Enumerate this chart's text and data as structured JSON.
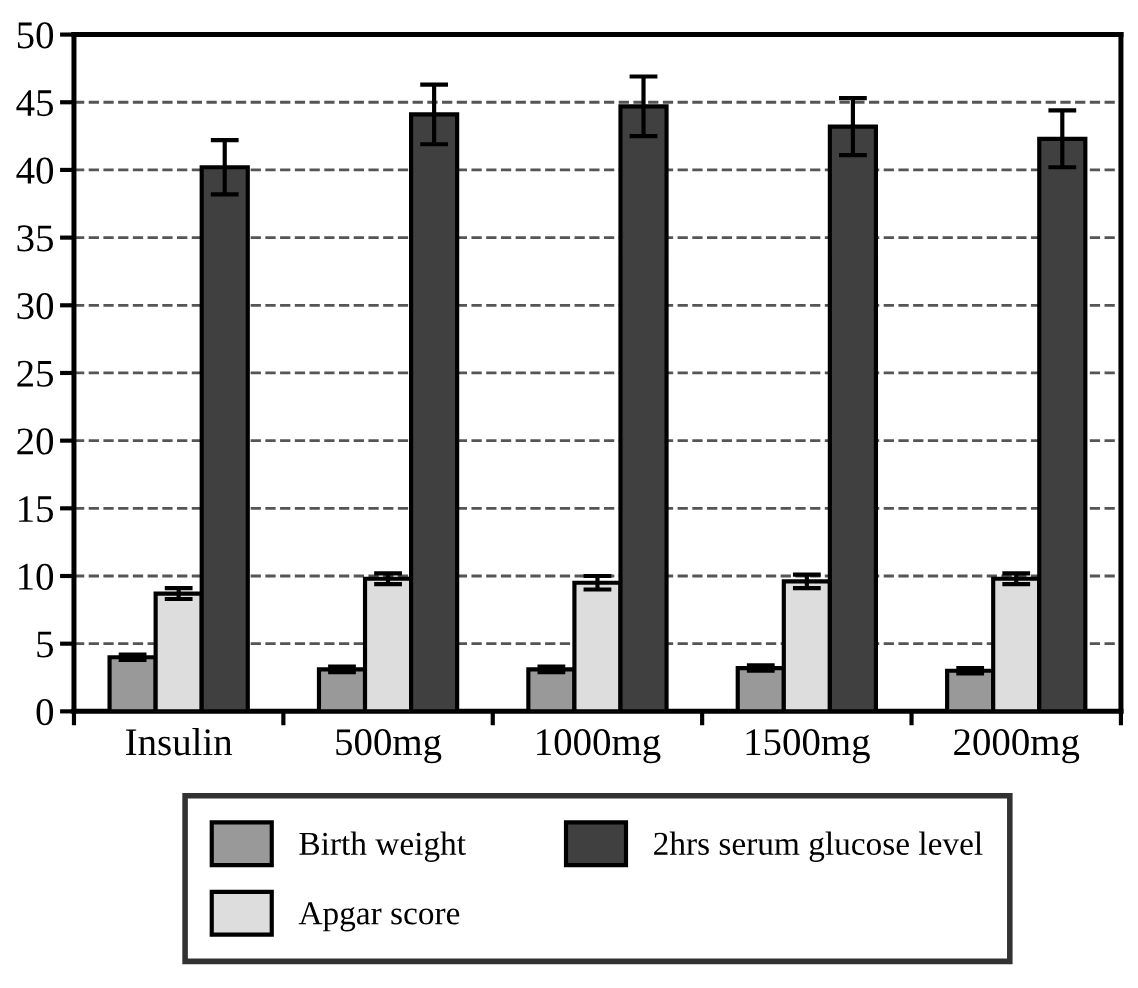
{
  "chart_data": {
    "type": "bar",
    "categories": [
      "Insulin",
      "500mg",
      "1000mg",
      "1500mg",
      "2000mg"
    ],
    "series": [
      {
        "name": "Birth weight",
        "color": "#999999",
        "values": [
          4.0,
          3.1,
          3.1,
          3.2,
          3.0
        ],
        "errors": [
          0.2,
          0.2,
          0.2,
          0.2,
          0.2
        ]
      },
      {
        "name": "Apgar score",
        "color": "#dddddd",
        "values": [
          8.7,
          9.8,
          9.5,
          9.6,
          9.8
        ],
        "errors": [
          0.4,
          0.4,
          0.5,
          0.5,
          0.4
        ]
      },
      {
        "name": "2hrs serum glucose level",
        "color": "#404040",
        "values": [
          40.2,
          44.1,
          44.7,
          43.2,
          42.3
        ],
        "errors": [
          2.0,
          2.2,
          2.2,
          2.1,
          2.1
        ]
      }
    ],
    "ylim": [
      0,
      50
    ],
    "yticks": [
      0,
      5,
      10,
      15,
      20,
      25,
      30,
      35,
      40,
      45,
      50
    ],
    "grid": "y",
    "legend": "bottom"
  }
}
